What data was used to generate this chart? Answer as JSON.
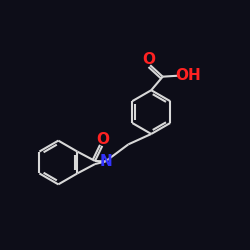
{
  "background_color": "#0d0d18",
  "bond_color": "#d8d8d8",
  "label_color_N": "#3333ff",
  "label_color_O": "#ff2222",
  "label_color_OH": "#ff2222",
  "font_size_atom": 11,
  "fig_width": 2.5,
  "fig_height": 2.5,
  "dpi": 100,
  "xlim": [
    0,
    12
  ],
  "ylim": [
    0,
    12
  ]
}
